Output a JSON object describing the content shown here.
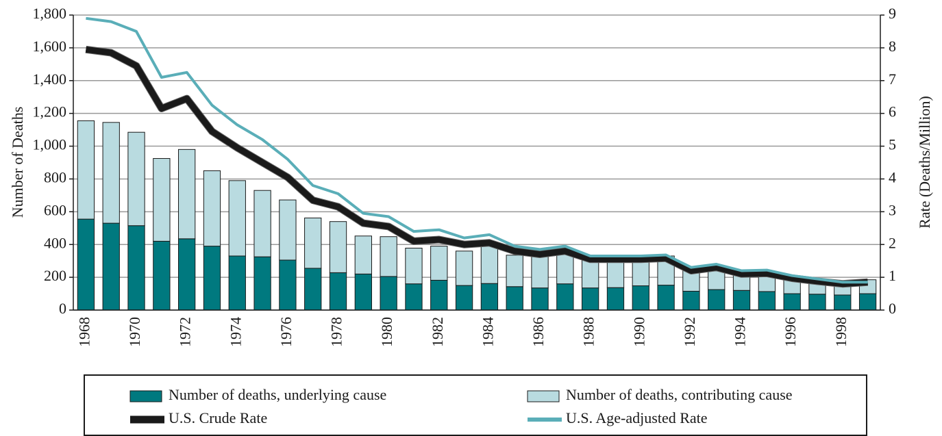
{
  "chart_data": {
    "type": "bar",
    "stacked": true,
    "y_label": "Number of Deaths",
    "y2_label": "Rate (Deaths/Million)",
    "categories": [
      "1968",
      null,
      "1970",
      null,
      "1972",
      null,
      "1974",
      null,
      "1976",
      null,
      "1978",
      null,
      "1980",
      null,
      "1982",
      null,
      "1984",
      null,
      "1986",
      null,
      "1988",
      null,
      "1990",
      null,
      "1992",
      null,
      "1994",
      null,
      "1996",
      null,
      "1998",
      null
    ],
    "series": [
      {
        "name": "Number of deaths, underlying cause",
        "type": "bar",
        "color": "#00797f",
        "values": [
          555,
          530,
          515,
          420,
          435,
          390,
          330,
          325,
          305,
          255,
          228,
          220,
          205,
          160,
          182,
          150,
          162,
          143,
          135,
          160,
          135,
          137,
          148,
          152,
          115,
          125,
          120,
          113,
          100,
          97,
          92,
          100
        ]
      },
      {
        "name": "Number of deaths, contributing cause",
        "type": "bar",
        "color": "#b9dbe0",
        "values": [
          600,
          615,
          570,
          505,
          545,
          460,
          460,
          405,
          367,
          307,
          312,
          232,
          243,
          218,
          208,
          210,
          228,
          192,
          195,
          195,
          185,
          183,
          167,
          178,
          130,
          135,
          95,
          112,
          100,
          93,
          83,
          85
        ]
      },
      {
        "name": "U.S. Crude Rate",
        "type": "line",
        "axis": "y2",
        "color": "#1a1a1a",
        "values": [
          7.95,
          7.85,
          7.45,
          6.15,
          6.45,
          5.45,
          4.95,
          4.5,
          4.05,
          3.35,
          3.15,
          2.65,
          2.55,
          2.1,
          2.15,
          2.0,
          2.05,
          1.8,
          1.7,
          1.8,
          1.55,
          1.55,
          1.55,
          1.58,
          1.2,
          1.3,
          1.1,
          1.12,
          0.97,
          0.88,
          0.8,
          0.85
        ]
      },
      {
        "name": "U.S. Age-adjusted Rate",
        "type": "line",
        "axis": "y2",
        "color": "#5aaeb8",
        "values": [
          8.9,
          8.8,
          8.5,
          7.1,
          7.25,
          6.25,
          5.65,
          5.2,
          4.6,
          3.8,
          3.55,
          2.95,
          2.85,
          2.4,
          2.45,
          2.2,
          2.3,
          1.95,
          1.85,
          1.95,
          1.65,
          1.65,
          1.65,
          1.68,
          1.3,
          1.4,
          1.2,
          1.22,
          1.05,
          0.95,
          0.85,
          0.85
        ]
      }
    ],
    "ylim": [
      0,
      1800
    ],
    "yticks": [
      0,
      200,
      400,
      600,
      800,
      {
        "value": 1000,
        "label": "1,000"
      },
      {
        "value": 1200,
        "label": "1,200"
      },
      {
        "value": 1400,
        "label": "1,400"
      },
      {
        "value": 1600,
        "label": "1,600"
      },
      {
        "value": 1800,
        "label": "1,800"
      }
    ],
    "y2lim": [
      0,
      9
    ],
    "y2ticks": [
      0,
      1,
      2,
      3,
      4,
      5,
      6,
      7,
      8,
      9
    ],
    "grid": true,
    "legend": "bottom"
  }
}
